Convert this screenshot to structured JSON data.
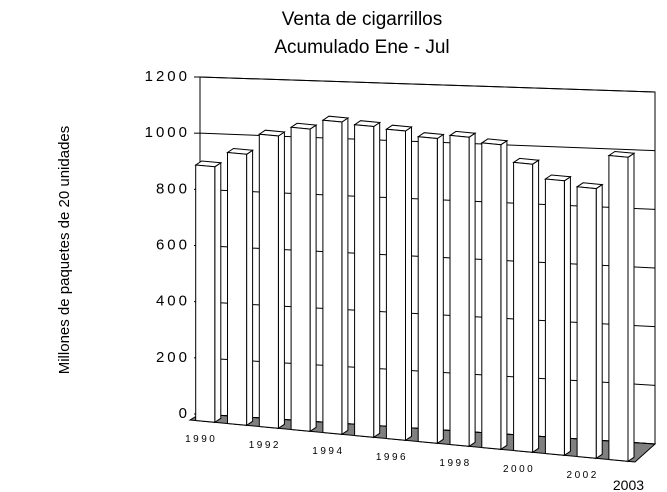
{
  "chart_data": {
    "type": "bar3d",
    "title": "Venta de cigarrillos",
    "subtitle": "Acumulado Ene - Jul",
    "y_label": "Millones de paquetes de 20 unidades",
    "categories": [
      "1990",
      null,
      "1992",
      null,
      "1994",
      null,
      "1996",
      null,
      "1998",
      null,
      "2000",
      null,
      "2002",
      "2003"
    ],
    "values": [
      900,
      950,
      1020,
      1050,
      1080,
      1070,
      1060,
      1040,
      1050,
      1030,
      970,
      920,
      900,
      1010
    ],
    "color": "#ffffff",
    "floor_color": "#808080",
    "ylim": [
      0,
      1200
    ],
    "yticks": [
      0,
      200,
      400,
      600,
      800,
      1000,
      1200
    ],
    "grid": true
  }
}
